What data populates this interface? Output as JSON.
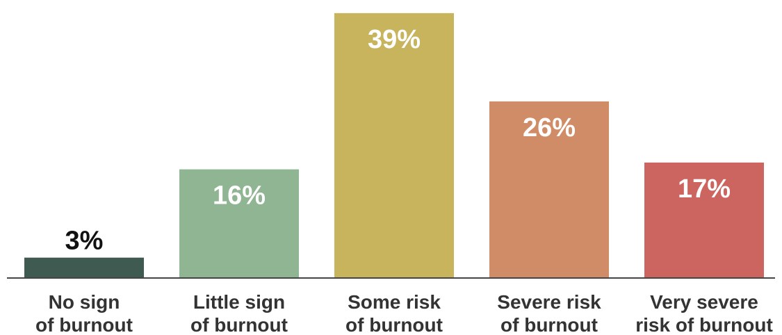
{
  "chart_data": {
    "type": "bar",
    "categories": [
      [
        "No sign",
        "of burnout"
      ],
      [
        "Little sign",
        "of burnout"
      ],
      [
        "Some risk",
        "of burnout"
      ],
      [
        "Severe risk",
        "of burnout"
      ],
      [
        "Very severe",
        "risk of burnout"
      ]
    ],
    "values": [
      3,
      16,
      39,
      26,
      17
    ],
    "data_labels": [
      "3%",
      "16%",
      "39%",
      "26%",
      "17%"
    ],
    "colors": [
      "#3f5a50",
      "#8fb592",
      "#c8b45c",
      "#d08c66",
      "#cc6460"
    ],
    "label_colors": [
      "#111111",
      "#ffffff",
      "#ffffff",
      "#ffffff",
      "#ffffff"
    ],
    "data_label_position": [
      "above",
      "inside",
      "inside",
      "inside",
      "inside"
    ],
    "ylim": [
      0,
      39.6
    ],
    "grid": false,
    "legend": "none",
    "title": "",
    "xlabel": "",
    "ylabel": ""
  }
}
